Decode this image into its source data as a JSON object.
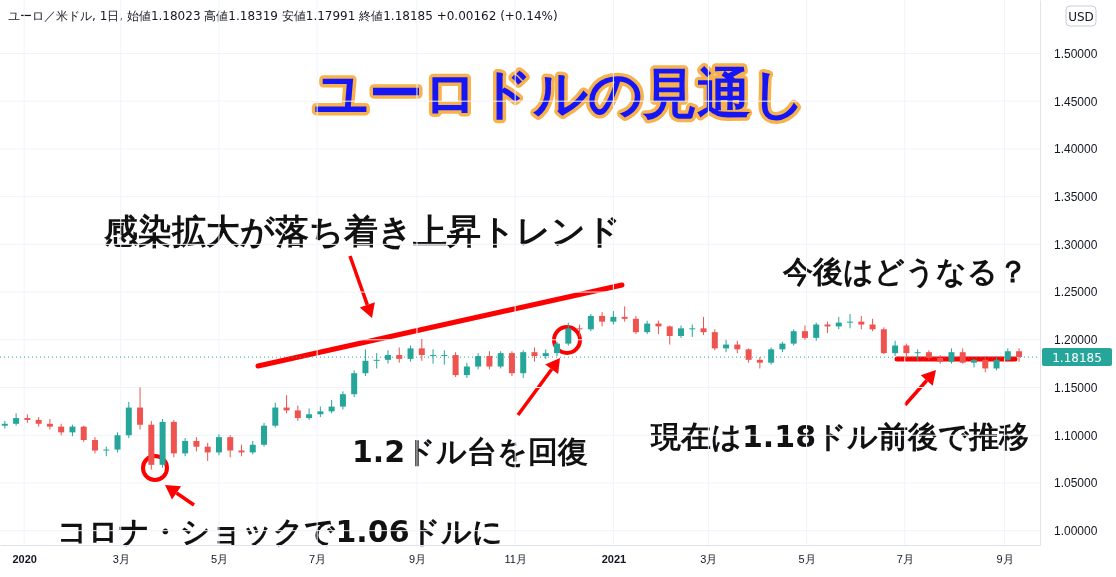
{
  "chart_data": {
    "type": "candlestick",
    "title": "ユーロドルの見通し",
    "subtitle": "ユーロ／米ドル, 1日, 始値1.18023 高値1.18319 安値1.17991 終値1.18185 +0.00162 (+0.14%)",
    "annotations": [
      "感染拡大が落ち着き上昇トレンド",
      "今後はどうなる？",
      "1.2ドル台を回復",
      "現在は1.18ドル前後で推移",
      "コロナ・ショックで1.06ドルに",
      "USD"
    ],
    "colors": [
      "#26a69a",
      "#26a69a",
      "#ef5350",
      "#ef5350",
      "#ef5350",
      "#ef5350",
      "#26a69a",
      "#ef5350",
      "#ef5350",
      "#26a69a",
      "#26a69a",
      "#26a69a",
      "#ef5350",
      "#ef5350",
      "#26a69a",
      "#ef5350",
      "#26a69a",
      "#ef5350",
      "#ef5350",
      "#26a69a",
      "#ef5350",
      "#ef5350",
      "#26a69a",
      "#26a69a",
      "#26a69a",
      "#ef5350",
      "#ef5350",
      "#26a69a",
      "#26a69a",
      "#26a69a",
      "#26a69a",
      "#26a69a",
      "#26a69a",
      "#26a69a",
      "#26a69a",
      "#ef5350",
      "#26a69a",
      "#ef5350",
      "#26a69a",
      "#26a69a",
      "#ef5350",
      "#26a69a",
      "#26a69a",
      "#ef5350",
      "#26a69a",
      "#ef5350",
      "#26a69a",
      "#ef5350",
      "#26a69a",
      "#26a69a",
      "#26a69a",
      "#ef5350",
      "#26a69a",
      "#ef5350",
      "#26a69a",
      "#ef5350",
      "#ef5350",
      "#26a69a",
      "#ef5350",
      "#ef5350",
      "#26a69a",
      "#26a69a",
      "#ef5350",
      "#ef5350",
      "#26a69a",
      "#ef5350",
      "#ef5350",
      "#ef5350",
      "#26a69a",
      "#26a69a",
      "#26a69a",
      "#ef5350",
      "#26a69a",
      "#ef5350",
      "#26a69a",
      "#26a69a",
      "#ef5350",
      "#ef5350",
      "#ef5350",
      "#26a69a",
      "#ef5350",
      "#26a69a",
      "#ef5350",
      "#ef5350",
      "#26a69a",
      "#ef5350",
      "#26a69a",
      "#ef5350",
      "#26a69a",
      "#26a69a",
      "#ef5350"
    ],
    "grid": true,
    "xlim": [
      "2019-12-17",
      "2021-09-23"
    ],
    "xticks": [
      {
        "value": "2020-01-01",
        "label": "2020"
      },
      {
        "value": "2020-03-01",
        "label": "3月"
      },
      {
        "value": "2020-05-01",
        "label": "5月"
      },
      {
        "value": "2020-07-01",
        "label": "7月"
      },
      {
        "value": "2020-09-01",
        "label": "9月"
      },
      {
        "value": "2020-11-01",
        "label": "11月"
      },
      {
        "value": "2021-01-01",
        "label": "2021"
      },
      {
        "value": "2021-03-01",
        "label": "3月"
      },
      {
        "value": "2021-05-01",
        "label": "5月"
      },
      {
        "value": "2021-07-01",
        "label": "7月"
      },
      {
        "value": "2021-09-01",
        "label": "9月"
      }
    ],
    "ylim": [
      0.985,
      1.556
    ],
    "yticks": [
      {
        "value": 1.0,
        "label": "1.00000"
      },
      {
        "value": 1.05,
        "label": "1.05000"
      },
      {
        "value": 1.1,
        "label": "1.10000"
      },
      {
        "value": 1.15,
        "label": "1.15000"
      },
      {
        "value": 1.2,
        "label": "1.20000"
      },
      {
        "value": 1.25,
        "label": "1.25000"
      },
      {
        "value": 1.3,
        "label": "1.30000"
      },
      {
        "value": 1.35,
        "label": "1.35000"
      },
      {
        "value": 1.4,
        "label": "1.40000"
      },
      {
        "value": 1.45,
        "label": "1.45000"
      },
      {
        "value": 1.5,
        "label": "1.50000"
      }
    ],
    "ref_lines": [
      {
        "axis": "y",
        "value": 1.18185,
        "label": "1.18185",
        "color": "#26a69a",
        "line_style": "dotted"
      }
    ],
    "x": [
      "2019-12-20",
      "2019-12-27",
      "2020-01-03",
      "2020-01-10",
      "2020-01-17",
      "2020-01-24",
      "2020-01-31",
      "2020-02-07",
      "2020-02-14",
      "2020-02-21",
      "2020-02-28",
      "2020-03-06",
      "2020-03-13",
      "2020-03-20",
      "2020-03-27",
      "2020-04-03",
      "2020-04-10",
      "2020-04-17",
      "2020-04-24",
      "2020-05-01",
      "2020-05-08",
      "2020-05-15",
      "2020-05-22",
      "2020-05-29",
      "2020-06-05",
      "2020-06-12",
      "2020-06-19",
      "2020-06-26",
      "2020-07-03",
      "2020-07-10",
      "2020-07-17",
      "2020-07-24",
      "2020-07-31",
      "2020-08-07",
      "2020-08-14",
      "2020-08-21",
      "2020-08-28",
      "2020-09-04",
      "2020-09-11",
      "2020-09-18",
      "2020-09-25",
      "2020-10-02",
      "2020-10-09",
      "2020-10-16",
      "2020-10-23",
      "2020-10-30",
      "2020-11-06",
      "2020-11-13",
      "2020-11-20",
      "2020-11-27",
      "2020-12-04",
      "2020-12-11",
      "2020-12-18",
      "2020-12-25",
      "2021-01-01",
      "2021-01-08",
      "2021-01-15",
      "2021-01-22",
      "2021-01-29",
      "2021-02-05",
      "2021-02-12",
      "2021-02-19",
      "2021-02-26",
      "2021-03-05",
      "2021-03-12",
      "2021-03-19",
      "2021-03-26",
      "2021-04-02",
      "2021-04-09",
      "2021-04-16",
      "2021-04-23",
      "2021-04-30",
      "2021-05-07",
      "2021-05-14",
      "2021-05-21",
      "2021-05-28",
      "2021-06-04",
      "2021-06-11",
      "2021-06-18",
      "2021-06-25",
      "2021-07-02",
      "2021-07-09",
      "2021-07-16",
      "2021-07-23",
      "2021-07-30",
      "2021-08-06",
      "2021-08-13",
      "2021-08-20",
      "2021-08-27",
      "2021-09-03",
      "2021-09-10"
    ],
    "ohlc": [
      [
        1.11,
        1.115,
        1.107,
        1.112
      ],
      [
        1.112,
        1.123,
        1.11,
        1.118
      ],
      [
        1.118,
        1.122,
        1.113,
        1.116
      ],
      [
        1.116,
        1.119,
        1.109,
        1.112
      ],
      [
        1.112,
        1.117,
        1.106,
        1.109
      ],
      [
        1.109,
        1.112,
        1.1,
        1.103
      ],
      [
        1.103,
        1.111,
        1.099,
        1.109
      ],
      [
        1.109,
        1.11,
        1.093,
        1.095
      ],
      [
        1.095,
        1.098,
        1.081,
        1.084
      ],
      [
        1.084,
        1.088,
        1.078,
        1.085
      ],
      [
        1.085,
        1.103,
        1.082,
        1.1
      ],
      [
        1.1,
        1.135,
        1.097,
        1.129
      ],
      [
        1.129,
        1.15,
        1.106,
        1.111
      ],
      [
        1.111,
        1.115,
        1.064,
        1.069
      ],
      [
        1.069,
        1.117,
        1.066,
        1.114
      ],
      [
        1.114,
        1.116,
        1.077,
        1.081
      ],
      [
        1.081,
        1.097,
        1.078,
        1.094
      ],
      [
        1.094,
        1.098,
        1.083,
        1.088
      ],
      [
        1.088,
        1.092,
        1.073,
        1.082
      ],
      [
        1.082,
        1.101,
        1.079,
        1.098
      ],
      [
        1.098,
        1.1,
        1.077,
        1.084
      ],
      [
        1.084,
        1.09,
        1.078,
        1.082
      ],
      [
        1.082,
        1.094,
        1.08,
        1.09
      ],
      [
        1.09,
        1.113,
        1.088,
        1.11
      ],
      [
        1.11,
        1.134,
        1.108,
        1.129
      ],
      [
        1.129,
        1.142,
        1.123,
        1.126
      ],
      [
        1.126,
        1.131,
        1.115,
        1.118
      ],
      [
        1.118,
        1.128,
        1.116,
        1.122
      ],
      [
        1.122,
        1.13,
        1.119,
        1.125
      ],
      [
        1.125,
        1.137,
        1.123,
        1.13
      ],
      [
        1.13,
        1.146,
        1.127,
        1.143
      ],
      [
        1.143,
        1.168,
        1.14,
        1.165
      ],
      [
        1.165,
        1.19,
        1.162,
        1.178
      ],
      [
        1.178,
        1.186,
        1.17,
        1.179
      ],
      [
        1.179,
        1.189,
        1.175,
        1.184
      ],
      [
        1.184,
        1.192,
        1.176,
        1.18
      ],
      [
        1.18,
        1.194,
        1.177,
        1.191
      ],
      [
        1.191,
        1.201,
        1.178,
        1.184
      ],
      [
        1.184,
        1.19,
        1.175,
        1.184
      ],
      [
        1.184,
        1.189,
        1.174,
        1.184
      ],
      [
        1.184,
        1.187,
        1.161,
        1.163
      ],
      [
        1.163,
        1.176,
        1.16,
        1.172
      ],
      [
        1.172,
        1.186,
        1.169,
        1.183
      ],
      [
        1.183,
        1.188,
        1.169,
        1.172
      ],
      [
        1.172,
        1.188,
        1.17,
        1.186
      ],
      [
        1.186,
        1.188,
        1.162,
        1.165
      ],
      [
        1.165,
        1.189,
        1.16,
        1.187
      ],
      [
        1.187,
        1.192,
        1.177,
        1.183
      ],
      [
        1.183,
        1.19,
        1.18,
        1.186
      ],
      [
        1.186,
        1.198,
        1.183,
        1.196
      ],
      [
        1.196,
        1.218,
        1.194,
        1.212
      ],
      [
        1.212,
        1.216,
        1.203,
        1.211
      ],
      [
        1.211,
        1.227,
        1.209,
        1.225
      ],
      [
        1.225,
        1.229,
        1.214,
        1.219
      ],
      [
        1.219,
        1.23,
        1.216,
        1.224
      ],
      [
        1.224,
        1.235,
        1.219,
        1.222
      ],
      [
        1.222,
        1.225,
        1.206,
        1.208
      ],
      [
        1.208,
        1.22,
        1.206,
        1.217
      ],
      [
        1.217,
        1.22,
        1.206,
        1.214
      ],
      [
        1.214,
        1.215,
        1.195,
        1.204
      ],
      [
        1.204,
        1.215,
        1.202,
        1.212
      ],
      [
        1.212,
        1.216,
        1.203,
        1.212
      ],
      [
        1.212,
        1.224,
        1.205,
        1.208
      ],
      [
        1.208,
        1.211,
        1.189,
        1.191
      ],
      [
        1.191,
        1.2,
        1.187,
        1.195
      ],
      [
        1.195,
        1.199,
        1.186,
        1.19
      ],
      [
        1.19,
        1.191,
        1.176,
        1.179
      ],
      [
        1.179,
        1.182,
        1.17,
        1.176
      ],
      [
        1.176,
        1.192,
        1.174,
        1.19
      ],
      [
        1.19,
        1.198,
        1.187,
        1.196
      ],
      [
        1.196,
        1.211,
        1.194,
        1.209
      ],
      [
        1.209,
        1.215,
        1.2,
        1.202
      ],
      [
        1.202,
        1.218,
        1.199,
        1.216
      ],
      [
        1.216,
        1.219,
        1.207,
        1.214
      ],
      [
        1.214,
        1.224,
        1.211,
        1.218
      ],
      [
        1.218,
        1.227,
        1.212,
        1.219
      ],
      [
        1.219,
        1.225,
        1.211,
        1.216
      ],
      [
        1.216,
        1.222,
        1.209,
        1.211
      ],
      [
        1.211,
        1.213,
        1.185,
        1.186
      ],
      [
        1.186,
        1.199,
        1.183,
        1.194
      ],
      [
        1.194,
        1.196,
        1.181,
        1.186
      ],
      [
        1.186,
        1.19,
        1.178,
        1.187
      ],
      [
        1.187,
        1.189,
        1.179,
        1.181
      ],
      [
        1.181,
        1.184,
        1.175,
        1.177
      ],
      [
        1.177,
        1.191,
        1.175,
        1.187
      ],
      [
        1.187,
        1.191,
        1.175,
        1.176
      ],
      [
        1.176,
        1.18,
        1.171,
        1.179
      ],
      [
        1.179,
        1.181,
        1.166,
        1.17
      ],
      [
        1.17,
        1.181,
        1.168,
        1.179
      ],
      [
        1.179,
        1.191,
        1.177,
        1.188
      ],
      [
        1.188,
        1.191,
        1.177,
        1.182
      ]
    ]
  }
}
